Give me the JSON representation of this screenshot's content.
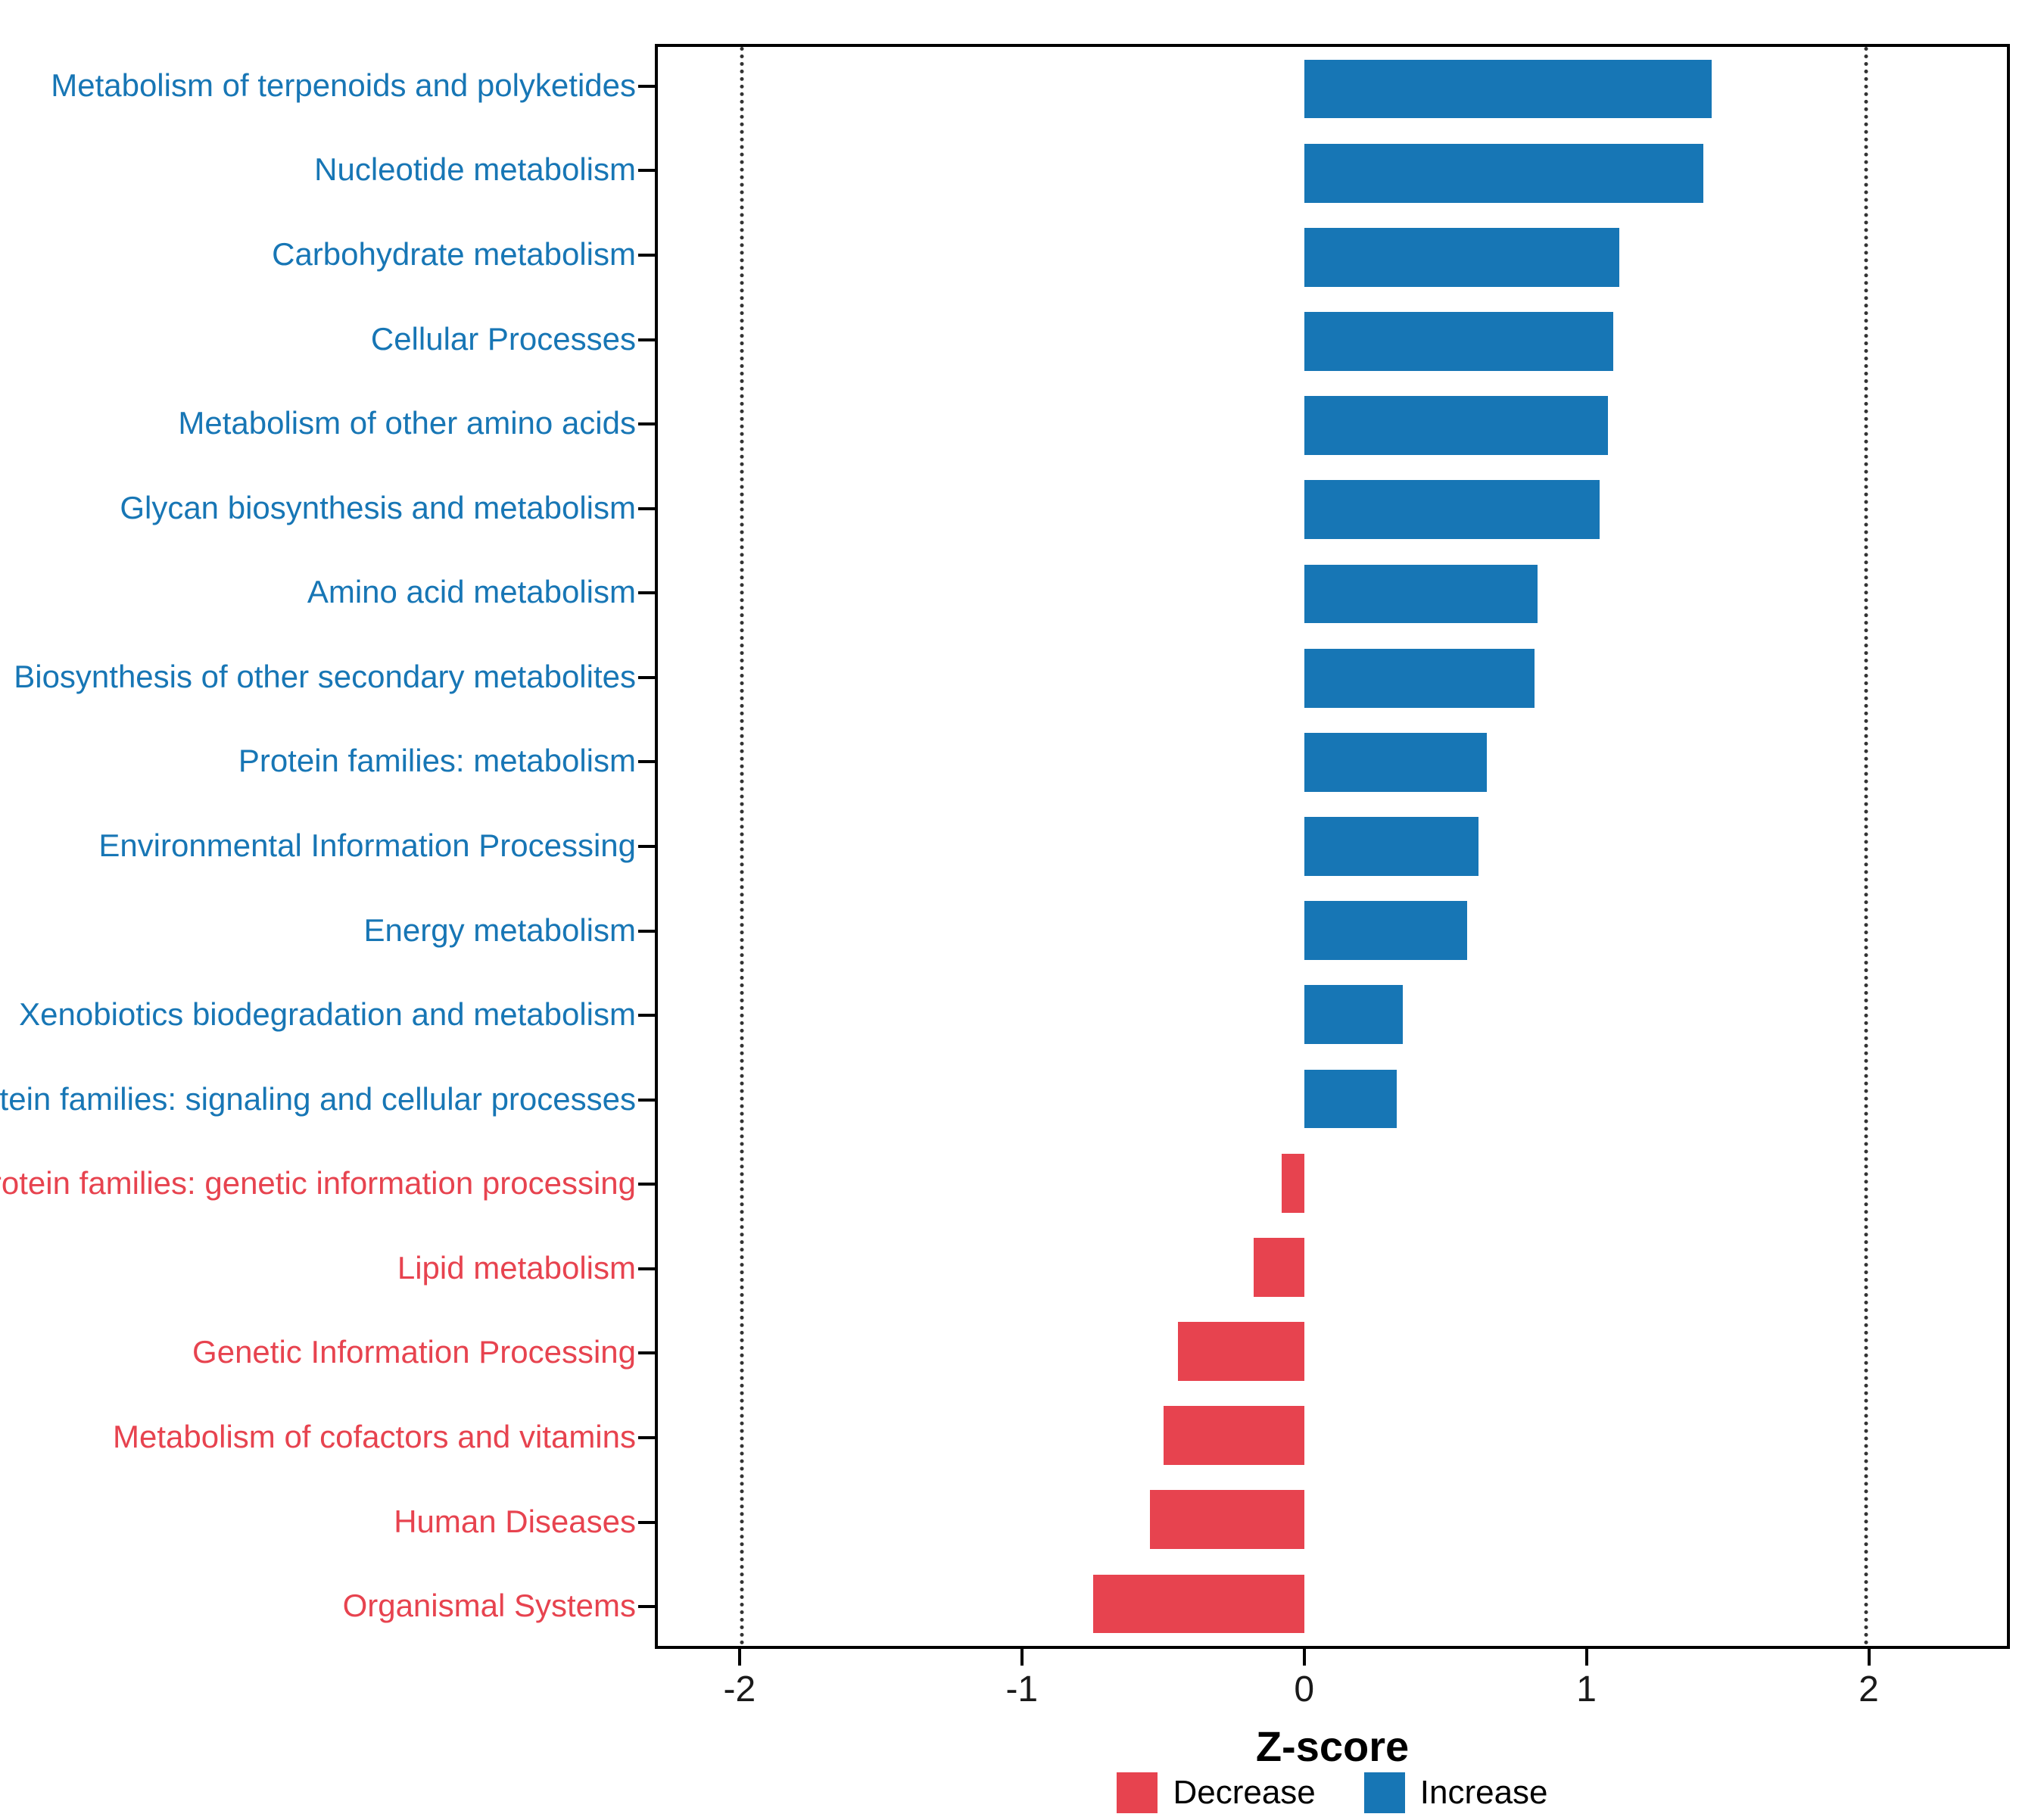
{
  "chart_data": {
    "type": "bar",
    "orientation": "horizontal",
    "title": "",
    "xlabel": "Z-score",
    "ylabel": "",
    "xlim": [
      -2.3,
      2.5
    ],
    "xticks": [
      -2,
      -1,
      0,
      1,
      2
    ],
    "reference_lines": [
      -2,
      2
    ],
    "grid": "reference lines at -2 and 2 only, dotted",
    "legend_position": "bottom",
    "categories": [
      "Metabolism of terpenoids and polyketides",
      "Nucleotide metabolism",
      "Carbohydrate metabolism",
      "Cellular Processes",
      "Metabolism of other amino acids",
      "Glycan biosynthesis and metabolism",
      "Amino acid metabolism",
      "Biosynthesis of other secondary metabolites",
      "Protein families: metabolism",
      "Environmental Information Processing",
      "Energy metabolism",
      "Xenobiotics biodegradation and metabolism",
      "Protein families: signaling and cellular processes",
      "Protein families: genetic information processing",
      "Lipid metabolism",
      "Genetic Information Processing",
      "Metabolism of cofactors and vitamins",
      "Human Diseases",
      "Organismal Systems"
    ],
    "values": [
      1.45,
      1.42,
      1.12,
      1.1,
      1.08,
      1.05,
      0.83,
      0.82,
      0.65,
      0.62,
      0.58,
      0.35,
      0.33,
      -0.08,
      -0.18,
      -0.45,
      -0.5,
      -0.55,
      -0.75
    ],
    "colors": {
      "increase": "#1776b5",
      "decrease": "#e7434f",
      "reference_line": "#333333",
      "panel_border": "#000000"
    },
    "legend": [
      {
        "label": "Decrease",
        "color": "#e7434f"
      },
      {
        "label": "Increase",
        "color": "#1776b5"
      }
    ]
  }
}
